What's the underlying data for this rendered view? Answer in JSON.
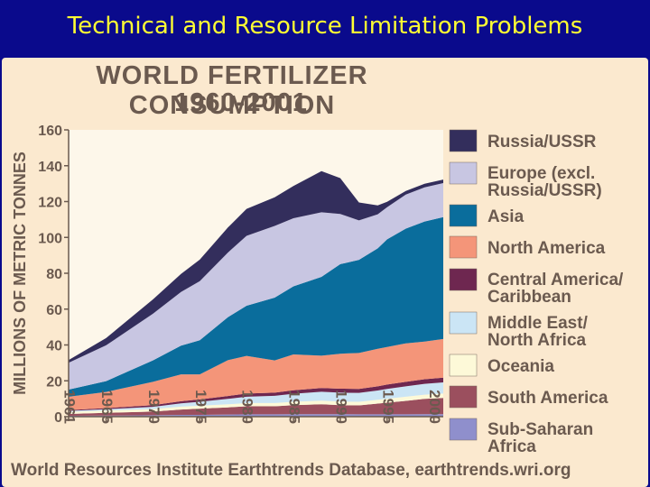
{
  "slide": {
    "title": "Technical and Resource Limitation Problems"
  },
  "chart_data": {
    "type": "area",
    "stacked": true,
    "title_line1": "WORLD FERTILIZER CONSUMPTION",
    "title_line2": "1960-2001",
    "ylabel": "MILLIONS OF METRIC TONNES",
    "ylim": [
      0,
      160
    ],
    "yticks": [
      0,
      20,
      40,
      60,
      80,
      100,
      120,
      140,
      160
    ],
    "xlim": [
      1961,
      2001
    ],
    "xtick_labels": [
      "1961",
      "1965",
      "1970",
      "1975",
      "1980",
      "1985",
      "1990",
      "1995",
      "2000"
    ],
    "x": [
      1961,
      1965,
      1970,
      1973,
      1975,
      1978,
      1980,
      1983,
      1985,
      1988,
      1990,
      1992,
      1994,
      1995,
      1997,
      1999,
      2001
    ],
    "series": [
      {
        "name": "Sub-Saharan Africa",
        "color": "#8f8fcc",
        "values": [
          0.5,
          0.6,
          0.8,
          1,
          1,
          1.2,
          1.3,
          1.3,
          1.4,
          1.4,
          1.4,
          1.3,
          1.3,
          1.3,
          1.3,
          1.4,
          1.4
        ]
      },
      {
        "name": "South America",
        "color": "#9b4f5e",
        "values": [
          1,
          1.5,
          2,
          3,
          3.5,
          4,
          4.5,
          4.5,
          5,
          5.5,
          5,
          5,
          6,
          6.5,
          7.5,
          8.5,
          9
        ]
      },
      {
        "name": "Oceania",
        "color": "#fdf9d8",
        "values": [
          1.2,
          1.3,
          1.5,
          1.6,
          1.6,
          1.7,
          1.8,
          1.8,
          1.9,
          2,
          2,
          2,
          2.1,
          2.2,
          2.3,
          2.4,
          2.5
        ]
      },
      {
        "name": "Middle East/ North Africa",
        "color": "#cbe5f5",
        "values": [
          0.5,
          0.8,
          1.2,
          1.8,
          2.2,
          3,
          3.5,
          4,
          4.5,
          5,
          5,
          5,
          5.2,
          5.5,
          5.8,
          6,
          6.2
        ]
      },
      {
        "name": "Central America/ Caribbean",
        "color": "#6e2750",
        "values": [
          0.4,
          0.6,
          0.9,
          1.2,
          1.3,
          1.6,
          1.8,
          1.8,
          1.9,
          2.1,
          2.2,
          2.2,
          2.3,
          2.4,
          2.5,
          2.6,
          2.7
        ]
      },
      {
        "name": "North America",
        "color": "#f49579",
        "values": [
          7.5,
          9,
          13,
          15,
          14,
          20,
          21,
          18,
          20,
          18,
          19.5,
          20,
          21,
          21,
          21.5,
          21,
          21.5
        ]
      },
      {
        "name": "Asia",
        "color": "#0a6d9c",
        "values": [
          4,
          6,
          12,
          16,
          19,
          24,
          28,
          35,
          38,
          44,
          50,
          52,
          56,
          60,
          64,
          67,
          68
        ]
      },
      {
        "name": "Europe (excl. Russia/USSR)",
        "color": "#c8c6e2",
        "values": [
          15,
          20,
          26,
          30,
          33,
          36,
          39,
          40,
          38,
          36,
          28,
          22,
          19,
          18,
          19,
          19,
          19
        ]
      },
      {
        "name": "Russia/USSR",
        "color": "#332e5c",
        "values": [
          1.5,
          4,
          8,
          10,
          12,
          14,
          15,
          16,
          18,
          23,
          20,
          10,
          5,
          3,
          2,
          2,
          2
        ]
      }
    ],
    "legend_order": [
      "Russia/USSR",
      "Europe (excl. Russia/USSR)",
      "Asia",
      "North America",
      "Central America/ Caribbean",
      "Middle East/ North Africa",
      "Oceania",
      "South America",
      "Sub-Saharan Africa"
    ],
    "source": "World Resources Institute Earthtrends Database, earthtrends.wri.org"
  }
}
